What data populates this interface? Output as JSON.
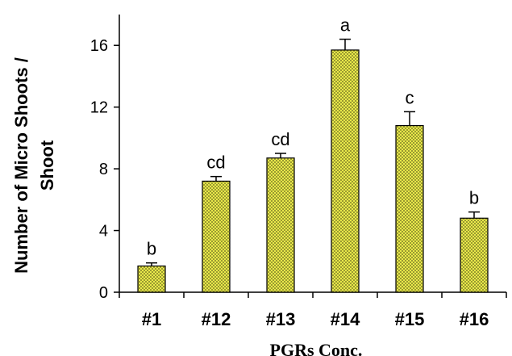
{
  "chart_data": {
    "type": "bar",
    "categories": [
      "#1",
      "#12",
      "#13",
      "#14",
      "#15",
      "#16"
    ],
    "values": [
      1.7,
      7.2,
      8.7,
      15.7,
      10.8,
      4.8
    ],
    "errors": [
      0.2,
      0.3,
      0.3,
      0.7,
      0.9,
      0.4
    ],
    "significance_labels": [
      "b",
      "cd",
      "cd",
      "a",
      "c",
      "b"
    ],
    "xlabel": "PGRs Conc.",
    "ylabel_lines": [
      "Number of Micro Shoots /",
      "Shoot"
    ],
    "ylim": [
      0,
      18
    ],
    "yticks": [
      0,
      4,
      8,
      12,
      16
    ],
    "ytick_labels": [
      "0",
      "4",
      "8",
      "12",
      "16"
    ],
    "grid": false,
    "bar_fill_color": "#e8e84a",
    "bar_pattern_color": "#8a8a2a",
    "bar_stroke_color": "#000000"
  }
}
